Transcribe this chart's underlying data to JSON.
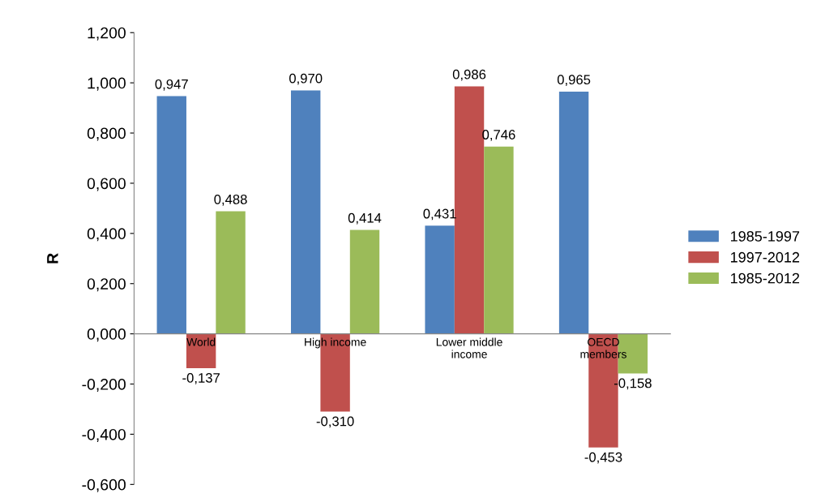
{
  "chart_data": {
    "type": "bar",
    "ylabel": "R",
    "categories": [
      "World",
      "High income",
      "Lower middle\nincome",
      "OECD\nmembers"
    ],
    "series": [
      {
        "name": "1985-1997",
        "color": "#4f81bd",
        "values": [
          0.947,
          0.97,
          0.431,
          0.965
        ],
        "value_labels": [
          "0,947",
          "0,970",
          "0,431",
          "0,965"
        ]
      },
      {
        "name": "1997-2012",
        "color": "#c0504d",
        "values": [
          -0.137,
          -0.31,
          0.986,
          -0.453
        ],
        "value_labels": [
          "-0,137",
          "-0,310",
          "0,986",
          "-0,453"
        ]
      },
      {
        "name": "1985-2012",
        "color": "#9bbb59",
        "values": [
          0.488,
          0.414,
          0.746,
          -0.158
        ],
        "value_labels": [
          "0,488",
          "0,414",
          "0,746",
          "-0,158"
        ]
      }
    ],
    "ylim": [
      -0.6,
      1.2
    ],
    "yticks": [
      {
        "value": -0.6,
        "label": "-0,600"
      },
      {
        "value": -0.4,
        "label": "-0,400"
      },
      {
        "value": -0.2,
        "label": "-0,200"
      },
      {
        "value": 0,
        "label": "0,000"
      },
      {
        "value": 0.2,
        "label": "0,200"
      },
      {
        "value": 0.4,
        "label": "0,400"
      },
      {
        "value": 0.6,
        "label": "0,600"
      },
      {
        "value": 0.8,
        "label": "0,800"
      },
      {
        "value": 1.0,
        "label": "1,000"
      },
      {
        "value": 1.2,
        "label": "1,200"
      }
    ],
    "grid": false,
    "legend": "right"
  }
}
